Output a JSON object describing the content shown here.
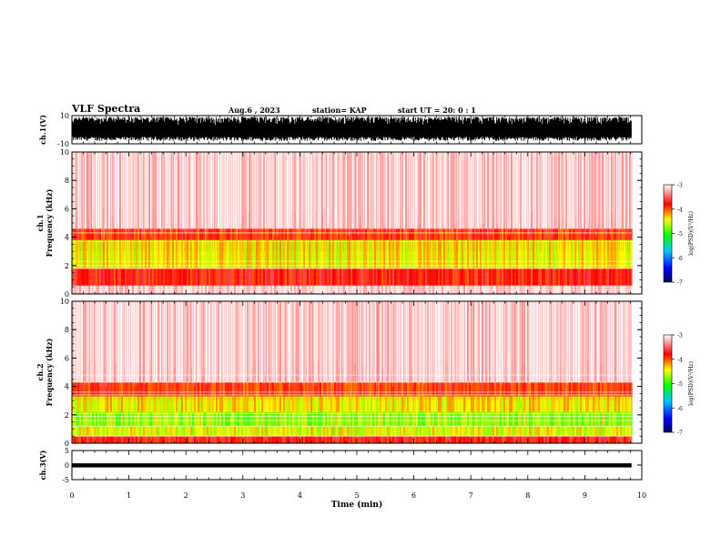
{
  "header": {
    "title": "VLF Spectra",
    "date": "Aug.6 , 2023",
    "station": "station= KAP",
    "start": "start UT = 20: 0 : 1"
  },
  "chart_data": [
    {
      "type": "line",
      "name": "ch1-waveform",
      "ylabel": "ch.1(V)",
      "ylim": [
        -10,
        10
      ],
      "yticks": [
        "10",
        "-10"
      ],
      "xlim": [
        0,
        10
      ],
      "trace_envelope_volts": [
        -8,
        9
      ]
    },
    {
      "type": "heatmap",
      "name": "ch1-spectrogram",
      "ylabel": "ch.1 Frequency (kHz)",
      "ylim": [
        0,
        10
      ],
      "yticks": [
        "0",
        "2",
        "4",
        "6",
        "8",
        "10"
      ],
      "xlim": [
        0,
        10
      ],
      "colorbar": {
        "label": "log(PSD)(V²/Hz)",
        "range": [
          -7,
          -3
        ],
        "ticks": [
          "-3",
          "-4",
          "-5",
          "-6",
          "-7"
        ],
        "colors": [
          "#00005a",
          "#0000ff",
          "#00c8ff",
          "#00ff00",
          "#ffff00",
          "#ff0000",
          "#ffffff"
        ]
      },
      "bands": [
        {
          "from_khz": 0.0,
          "to_khz": 0.6,
          "log_psd": -3.2
        },
        {
          "from_khz": 0.6,
          "to_khz": 1.8,
          "log_psd": -3.8
        },
        {
          "from_khz": 1.8,
          "to_khz": 3.8,
          "log_psd": -4.4
        },
        {
          "from_khz": 3.8,
          "to_khz": 4.6,
          "log_psd": -3.9
        },
        {
          "from_khz": 4.6,
          "to_khz": 10.0,
          "log_psd": -3.1
        }
      ],
      "lines_khz": [
        0.15,
        0.3,
        0.45,
        1.8,
        2.0,
        2.3,
        3.7,
        4.3
      ]
    },
    {
      "type": "heatmap",
      "name": "ch2-spectrogram",
      "ylabel": "ch.2 Frequency (kHz)",
      "ylim": [
        0,
        10
      ],
      "yticks": [
        "0",
        "2",
        "4",
        "6",
        "8",
        "10"
      ],
      "xlim": [
        0,
        10
      ],
      "colorbar": {
        "label": "log(PSD)(V²/Hz)",
        "range": [
          -7,
          -3
        ],
        "ticks": [
          "-3",
          "-4",
          "-5",
          "-6",
          "-7"
        ],
        "colors": [
          "#00005a",
          "#0000ff",
          "#00c8ff",
          "#00ff00",
          "#ffff00",
          "#ff0000",
          "#ffffff"
        ]
      },
      "bands": [
        {
          "from_khz": 0.0,
          "to_khz": 0.5,
          "log_psd": -3.8
        },
        {
          "from_khz": 0.5,
          "to_khz": 1.2,
          "log_psd": -4.5
        },
        {
          "from_khz": 1.2,
          "to_khz": 2.2,
          "log_psd": -4.7
        },
        {
          "from_khz": 2.2,
          "to_khz": 3.3,
          "log_psd": -4.4
        },
        {
          "from_khz": 3.3,
          "to_khz": 4.3,
          "log_psd": -3.9
        },
        {
          "from_khz": 4.3,
          "to_khz": 10.0,
          "log_psd": -3.1
        }
      ],
      "lines_khz": [
        0.5,
        1.2,
        1.6,
        1.9,
        2.1,
        3.4,
        3.6,
        4.3,
        4.8
      ]
    },
    {
      "type": "line",
      "name": "ch3-waveform",
      "ylabel": "ch.3(V)",
      "ylim": [
        -5,
        5
      ],
      "yticks": [
        "5",
        "0",
        "-5"
      ],
      "xlim": [
        0,
        10
      ],
      "trace_band_volts": [
        -0.8,
        0.6
      ]
    }
  ],
  "x_axis": {
    "label": "Time (min)",
    "ticks": [
      "0",
      "1",
      "2",
      "3",
      "4",
      "5",
      "6",
      "7",
      "8",
      "9",
      "10"
    ]
  },
  "data_end_min": 9.82,
  "colors": {
    "axis": "#000000",
    "background": "#ffffff"
  }
}
